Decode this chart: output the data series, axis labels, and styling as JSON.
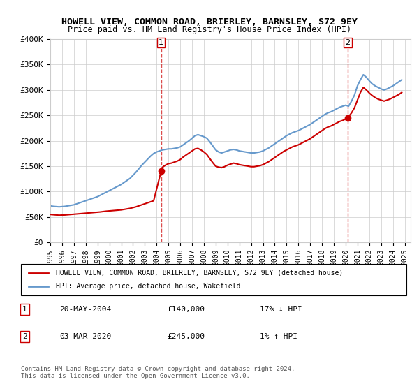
{
  "title": "HOWELL VIEW, COMMON ROAD, BRIERLEY, BARNSLEY, S72 9EY",
  "subtitle": "Price paid vs. HM Land Registry's House Price Index (HPI)",
  "legend_label_red": "HOWELL VIEW, COMMON ROAD, BRIERLEY, BARNSLEY, S72 9EY (detached house)",
  "legend_label_blue": "HPI: Average price, detached house, Wakefield",
  "sale1_label": "1",
  "sale2_label": "2",
  "sale1_date": "20-MAY-2004",
  "sale1_price": "£140,000",
  "sale1_hpi": "17% ↓ HPI",
  "sale2_date": "03-MAR-2020",
  "sale2_price": "£245,000",
  "sale2_hpi": "1% ↑ HPI",
  "footer": "Contains HM Land Registry data © Crown copyright and database right 2024.\nThis data is licensed under the Open Government Licence v3.0.",
  "ylim": [
    0,
    400000
  ],
  "yticks": [
    0,
    50000,
    100000,
    150000,
    200000,
    250000,
    300000,
    350000,
    400000
  ],
  "ytick_labels": [
    "£0",
    "£50K",
    "£100K",
    "£150K",
    "£200K",
    "£250K",
    "£300K",
    "£350K",
    "£400K"
  ],
  "xlim_start": 1995.0,
  "xlim_end": 2025.5,
  "sale1_x": 2004.38,
  "sale2_x": 2020.17,
  "sale1_y": 140000,
  "sale2_y": 245000,
  "red_color": "#cc0000",
  "blue_color": "#6699cc",
  "dashed_color": "#cc0000",
  "background_color": "#ffffff",
  "grid_color": "#cccccc",
  "hpi_x": [
    1995.0,
    1995.25,
    1995.5,
    1995.75,
    1996.0,
    1996.25,
    1996.5,
    1996.75,
    1997.0,
    1997.25,
    1997.5,
    1997.75,
    1998.0,
    1998.25,
    1998.5,
    1998.75,
    1999.0,
    1999.25,
    1999.5,
    1999.75,
    2000.0,
    2000.25,
    2000.5,
    2000.75,
    2001.0,
    2001.25,
    2001.5,
    2001.75,
    2002.0,
    2002.25,
    2002.5,
    2002.75,
    2003.0,
    2003.25,
    2003.5,
    2003.75,
    2004.0,
    2004.25,
    2004.5,
    2004.75,
    2005.0,
    2005.25,
    2005.5,
    2005.75,
    2006.0,
    2006.25,
    2006.5,
    2006.75,
    2007.0,
    2007.25,
    2007.5,
    2007.75,
    2008.0,
    2008.25,
    2008.5,
    2008.75,
    2009.0,
    2009.25,
    2009.5,
    2009.75,
    2010.0,
    2010.25,
    2010.5,
    2010.75,
    2011.0,
    2011.25,
    2011.5,
    2011.75,
    2012.0,
    2012.25,
    2012.5,
    2012.75,
    2013.0,
    2013.25,
    2013.5,
    2013.75,
    2014.0,
    2014.25,
    2014.5,
    2014.75,
    2015.0,
    2015.25,
    2015.5,
    2015.75,
    2016.0,
    2016.25,
    2016.5,
    2016.75,
    2017.0,
    2017.25,
    2017.5,
    2017.75,
    2018.0,
    2018.25,
    2018.5,
    2018.75,
    2019.0,
    2019.25,
    2019.5,
    2019.75,
    2020.0,
    2020.25,
    2020.5,
    2020.75,
    2021.0,
    2021.25,
    2021.5,
    2021.75,
    2022.0,
    2022.25,
    2022.5,
    2022.75,
    2023.0,
    2023.25,
    2023.5,
    2023.75,
    2024.0,
    2024.25,
    2024.5,
    2024.75
  ],
  "hpi_y": [
    72000,
    71000,
    70500,
    70000,
    70500,
    71000,
    72000,
    73000,
    74000,
    76000,
    78000,
    80000,
    82000,
    84000,
    86000,
    88000,
    90000,
    93000,
    96000,
    99000,
    102000,
    105000,
    108000,
    111000,
    114000,
    118000,
    122000,
    126000,
    132000,
    138000,
    145000,
    152000,
    158000,
    164000,
    170000,
    175000,
    178000,
    180000,
    182000,
    183000,
    184000,
    184000,
    185000,
    186000,
    188000,
    192000,
    196000,
    200000,
    205000,
    210000,
    212000,
    210000,
    208000,
    205000,
    198000,
    190000,
    182000,
    178000,
    176000,
    178000,
    180000,
    182000,
    183000,
    182000,
    180000,
    179000,
    178000,
    177000,
    176000,
    176000,
    177000,
    178000,
    180000,
    183000,
    186000,
    190000,
    194000,
    198000,
    202000,
    206000,
    210000,
    213000,
    216000,
    218000,
    220000,
    223000,
    226000,
    229000,
    232000,
    236000,
    240000,
    244000,
    248000,
    252000,
    255000,
    257000,
    260000,
    263000,
    266000,
    268000,
    270000,
    268000,
    278000,
    290000,
    308000,
    320000,
    330000,
    325000,
    318000,
    312000,
    308000,
    305000,
    302000,
    300000,
    302000,
    305000,
    308000,
    312000,
    316000,
    320000
  ],
  "red_x": [
    1995.0,
    1995.25,
    1995.5,
    1995.75,
    1996.0,
    1996.25,
    1996.5,
    1996.75,
    1997.0,
    1997.25,
    1997.5,
    1997.75,
    1998.0,
    1998.25,
    1998.5,
    1998.75,
    1999.0,
    1999.25,
    1999.5,
    1999.75,
    2000.0,
    2000.25,
    2000.5,
    2000.75,
    2001.0,
    2001.25,
    2001.5,
    2001.75,
    2002.0,
    2002.25,
    2002.5,
    2002.75,
    2003.0,
    2003.25,
    2003.5,
    2003.75,
    2004.38,
    2004.38,
    2004.5,
    2004.75,
    2005.0,
    2005.25,
    2005.5,
    2005.75,
    2006.0,
    2006.25,
    2006.5,
    2006.75,
    2007.0,
    2007.25,
    2007.5,
    2007.75,
    2008.0,
    2008.25,
    2008.5,
    2008.75,
    2009.0,
    2009.25,
    2009.5,
    2009.75,
    2010.0,
    2010.25,
    2010.5,
    2010.75,
    2011.0,
    2011.25,
    2011.5,
    2011.75,
    2012.0,
    2012.25,
    2012.5,
    2012.75,
    2013.0,
    2013.25,
    2013.5,
    2013.75,
    2014.0,
    2014.25,
    2014.5,
    2014.75,
    2015.0,
    2015.25,
    2015.5,
    2015.75,
    2016.0,
    2016.25,
    2016.5,
    2016.75,
    2017.0,
    2017.25,
    2017.5,
    2017.75,
    2018.0,
    2018.25,
    2018.5,
    2018.75,
    2019.0,
    2019.25,
    2019.5,
    2019.75,
    2020.17,
    2020.17,
    2020.5,
    2020.75,
    2021.0,
    2021.25,
    2021.5,
    2021.75,
    2022.0,
    2022.25,
    2022.5,
    2022.75,
    2023.0,
    2023.25,
    2023.5,
    2023.75,
    2024.0,
    2024.25,
    2024.5,
    2024.75
  ],
  "red_y": [
    55000,
    54500,
    54000,
    53500,
    53800,
    54000,
    54500,
    55000,
    55500,
    56000,
    56500,
    57000,
    57500,
    58000,
    58500,
    59000,
    59500,
    60000,
    60800,
    61500,
    62000,
    62500,
    63000,
    63500,
    64000,
    65000,
    66000,
    67000,
    68500,
    70000,
    72000,
    74000,
    76000,
    78000,
    80000,
    82000,
    140000,
    140000,
    148000,
    152000,
    155000,
    156000,
    158000,
    160000,
    163000,
    168000,
    172000,
    176000,
    180000,
    184000,
    185000,
    182000,
    178000,
    173000,
    165000,
    157000,
    150000,
    148000,
    147000,
    149000,
    152000,
    154000,
    156000,
    155000,
    153000,
    152000,
    151000,
    150000,
    149000,
    149000,
    150000,
    151000,
    153000,
    156000,
    159000,
    163000,
    167000,
    171000,
    175000,
    179000,
    182000,
    185000,
    188000,
    190000,
    192000,
    195000,
    198000,
    201000,
    204000,
    208000,
    212000,
    216000,
    220000,
    224000,
    227000,
    229000,
    232000,
    235000,
    238000,
    240000,
    245000,
    245000,
    255000,
    265000,
    280000,
    295000,
    305000,
    300000,
    294000,
    289000,
    285000,
    282000,
    280000,
    278000,
    280000,
    282000,
    285000,
    288000,
    291000,
    295000
  ]
}
